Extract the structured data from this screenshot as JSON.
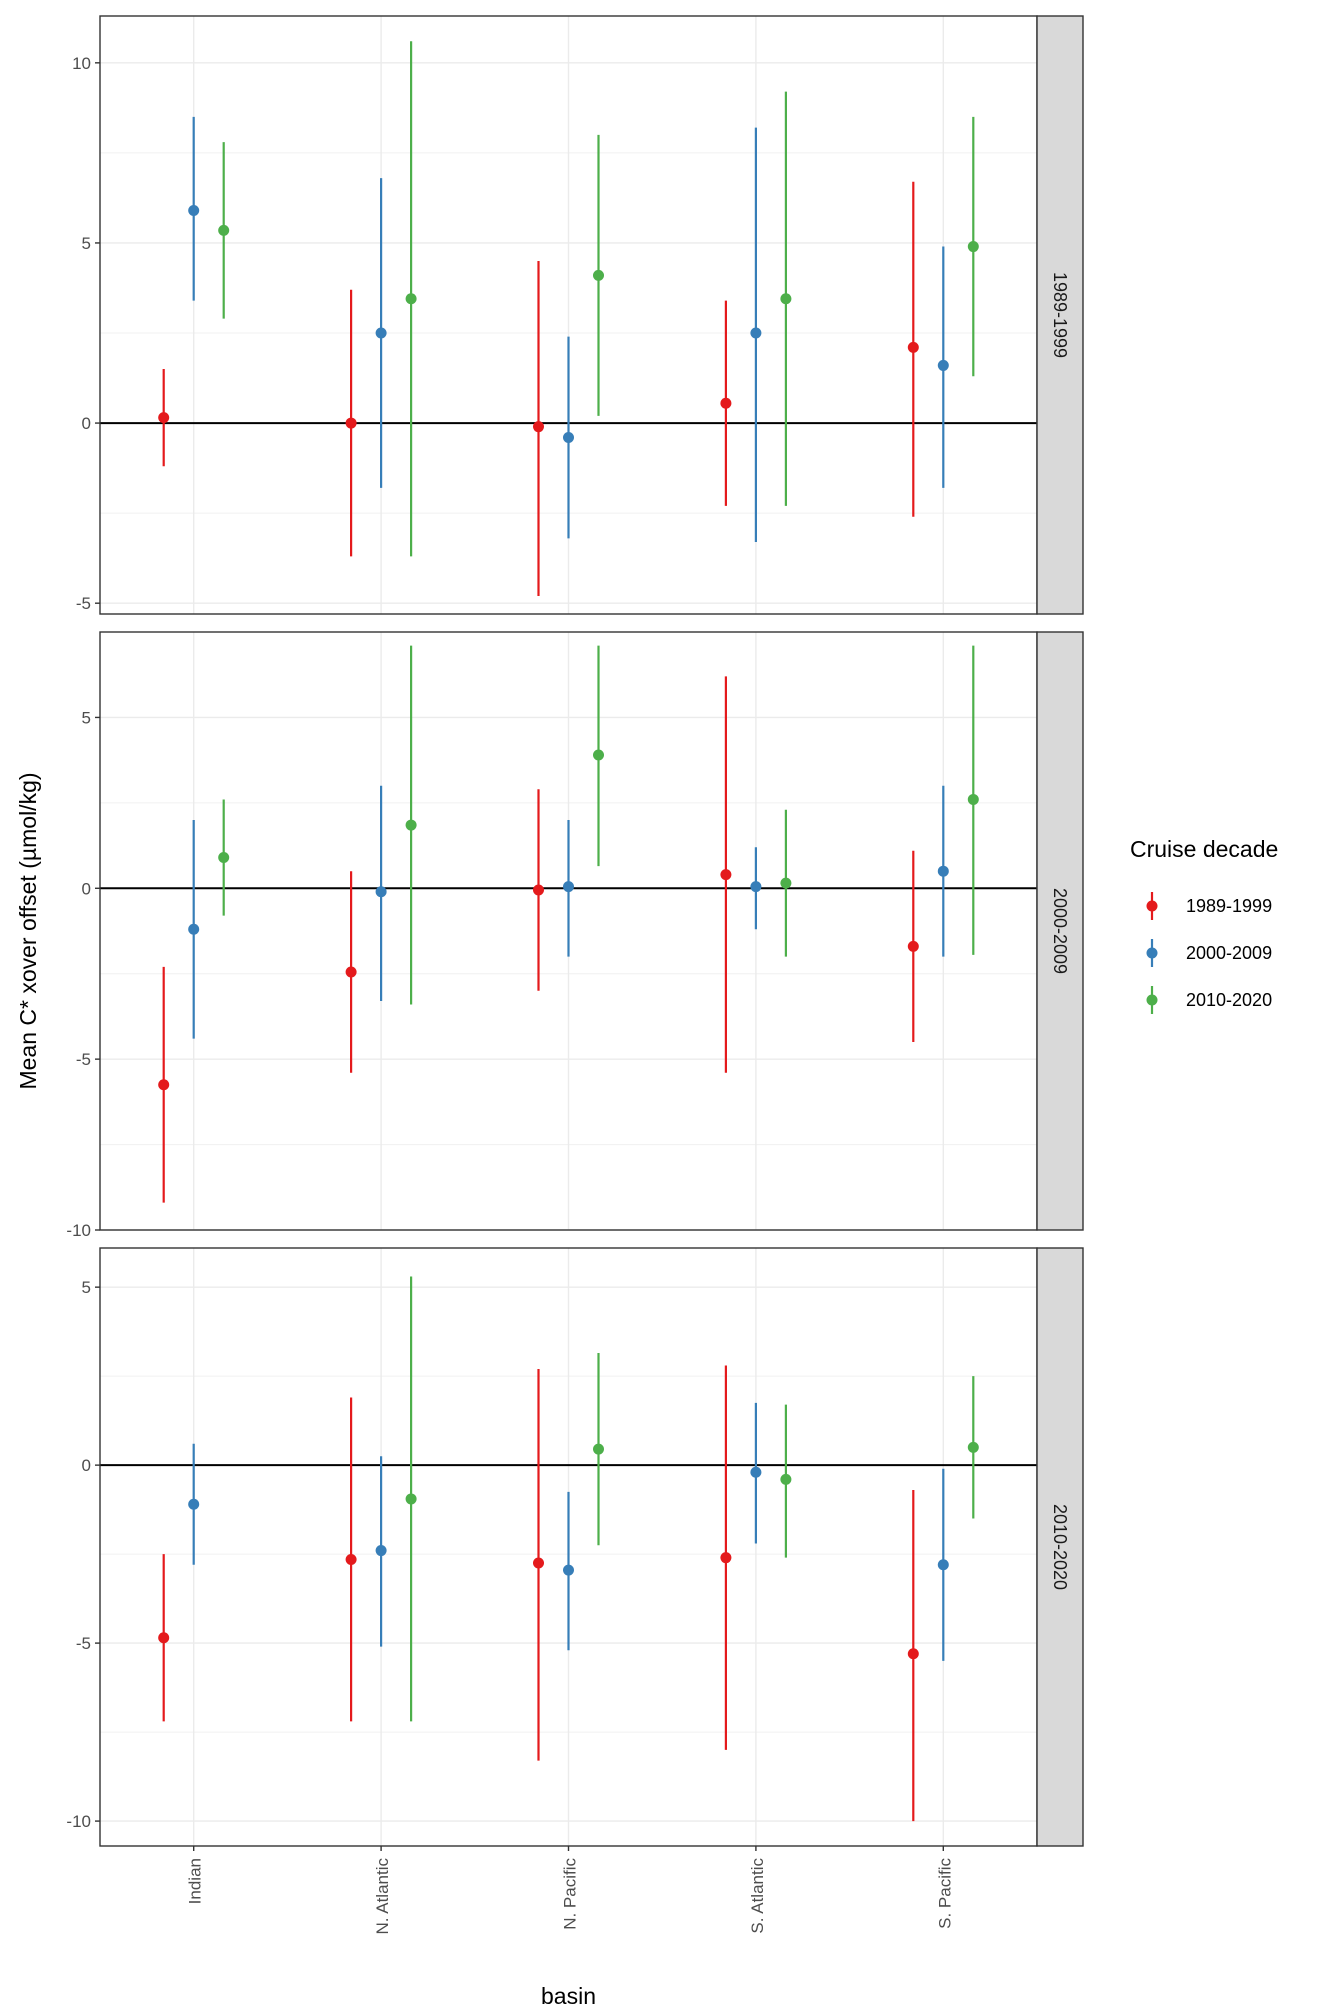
{
  "chart_data": {
    "type": "pointrange",
    "xlabel": "basin",
    "ylabel": "Mean C* xover offset (µmol/kg)",
    "categories": [
      "Indian",
      "N. Atlantic",
      "N. Pacific",
      "S. Atlantic",
      "S. Pacific"
    ],
    "legend": {
      "title": "Cruise decade",
      "position": "right",
      "entries": [
        {
          "name": "1989-1999",
          "color": "#e41a1c"
        },
        {
          "name": "2000-2009",
          "color": "#377eb8"
        },
        {
          "name": "2010-2020",
          "color": "#4daf4a"
        }
      ]
    },
    "facets": [
      {
        "label": "1989-1999",
        "ylim": [
          -5.3,
          11.3
        ],
        "ticks": [
          -5,
          0,
          5,
          10
        ],
        "tick_labels": [
          "-5",
          "0",
          "5",
          "10"
        ],
        "series": [
          {
            "name": "1989-1999",
            "points": [
              {
                "basin": "Indian",
                "mean": 0.15,
                "low": -1.2,
                "high": 1.5
              },
              {
                "basin": "N. Atlantic",
                "mean": 0.0,
                "low": -3.7,
                "high": 3.7
              },
              {
                "basin": "N. Pacific",
                "mean": -0.1,
                "low": -4.8,
                "high": 4.5
              },
              {
                "basin": "S. Atlantic",
                "mean": 0.55,
                "low": -2.3,
                "high": 3.4
              },
              {
                "basin": "S. Pacific",
                "mean": 2.1,
                "low": -2.6,
                "high": 6.7
              }
            ]
          },
          {
            "name": "2000-2009",
            "points": [
              {
                "basin": "Indian",
                "mean": 5.9,
                "low": 3.4,
                "high": 8.5
              },
              {
                "basin": "N. Atlantic",
                "mean": 2.5,
                "low": -1.8,
                "high": 6.8
              },
              {
                "basin": "N. Pacific",
                "mean": -0.4,
                "low": -3.2,
                "high": 2.4
              },
              {
                "basin": "S. Atlantic",
                "mean": 2.5,
                "low": -3.3,
                "high": 8.2
              },
              {
                "basin": "S. Pacific",
                "mean": 1.6,
                "low": -1.8,
                "high": 4.9
              }
            ]
          },
          {
            "name": "2010-2020",
            "points": [
              {
                "basin": "Indian",
                "mean": 5.35,
                "low": 2.9,
                "high": 7.8
              },
              {
                "basin": "N. Atlantic",
                "mean": 3.45,
                "low": -3.7,
                "high": 10.6
              },
              {
                "basin": "N. Pacific",
                "mean": 4.1,
                "low": 0.2,
                "high": 8.0
              },
              {
                "basin": "S. Atlantic",
                "mean": 3.45,
                "low": -2.3,
                "high": 9.2
              },
              {
                "basin": "S. Pacific",
                "mean": 4.9,
                "low": 1.3,
                "high": 8.5
              }
            ]
          }
        ]
      },
      {
        "label": "2000-2009",
        "ylim": [
          -10.0,
          7.5
        ],
        "ticks": [
          -10,
          -5,
          0,
          5
        ],
        "tick_labels": [
          "-10",
          "-5",
          "0",
          "5"
        ],
        "series": [
          {
            "name": "1989-1999",
            "points": [
              {
                "basin": "Indian",
                "mean": -5.75,
                "low": -9.2,
                "high": -2.3
              },
              {
                "basin": "N. Atlantic",
                "mean": -2.45,
                "low": -5.4,
                "high": 0.5
              },
              {
                "basin": "N. Pacific",
                "mean": -0.05,
                "low": -3.0,
                "high": 2.9
              },
              {
                "basin": "S. Atlantic",
                "mean": 0.4,
                "low": -5.4,
                "high": 6.2
              },
              {
                "basin": "S. Pacific",
                "mean": -1.7,
                "low": -4.5,
                "high": 1.1
              }
            ]
          },
          {
            "name": "2000-2009",
            "points": [
              {
                "basin": "Indian",
                "mean": -1.2,
                "low": -4.4,
                "high": 2.0
              },
              {
                "basin": "N. Atlantic",
                "mean": -0.1,
                "low": -3.3,
                "high": 3.0
              },
              {
                "basin": "N. Pacific",
                "mean": 0.05,
                "low": -2.0,
                "high": 2.0
              },
              {
                "basin": "S. Atlantic",
                "mean": 0.05,
                "low": -1.2,
                "high": 1.2
              },
              {
                "basin": "S. Pacific",
                "mean": 0.5,
                "low": -2.0,
                "high": 3.0
              }
            ]
          },
          {
            "name": "2010-2020",
            "points": [
              {
                "basin": "Indian",
                "mean": 0.9,
                "low": -0.8,
                "high": 2.6
              },
              {
                "basin": "N. Atlantic",
                "mean": 1.85,
                "low": -3.4,
                "high": 7.1
              },
              {
                "basin": "N. Pacific",
                "mean": 3.9,
                "low": 0.65,
                "high": 7.1
              },
              {
                "basin": "S. Atlantic",
                "mean": 0.15,
                "low": -2.0,
                "high": 2.3
              },
              {
                "basin": "S. Pacific",
                "mean": 2.6,
                "low": -1.95,
                "high": 7.1
              }
            ]
          }
        ]
      },
      {
        "label": "2010-2020",
        "ylim": [
          -10.7,
          6.1
        ],
        "ticks": [
          -10,
          -5,
          0,
          5
        ],
        "tick_labels": [
          "-10",
          "-5",
          "0",
          "5"
        ],
        "series": [
          {
            "name": "1989-1999",
            "points": [
              {
                "basin": "Indian",
                "mean": -4.85,
                "low": -7.2,
                "high": -2.5
              },
              {
                "basin": "N. Atlantic",
                "mean": -2.65,
                "low": -7.2,
                "high": 1.9
              },
              {
                "basin": "N. Pacific",
                "mean": -2.75,
                "low": -8.3,
                "high": 2.7
              },
              {
                "basin": "S. Atlantic",
                "mean": -2.6,
                "low": -8.0,
                "high": 2.8
              },
              {
                "basin": "S. Pacific",
                "mean": -5.3,
                "low": -10.0,
                "high": -0.7
              }
            ]
          },
          {
            "name": "2000-2009",
            "points": [
              {
                "basin": "Indian",
                "mean": -1.1,
                "low": -2.8,
                "high": 0.6
              },
              {
                "basin": "N. Atlantic",
                "mean": -2.4,
                "low": -5.1,
                "high": 0.25
              },
              {
                "basin": "N. Pacific",
                "mean": -2.95,
                "low": -5.2,
                "high": -0.75
              },
              {
                "basin": "S. Atlantic",
                "mean": -0.2,
                "low": -2.2,
                "high": 1.75
              },
              {
                "basin": "S. Pacific",
                "mean": -2.8,
                "low": -5.5,
                "high": -0.1
              }
            ]
          },
          {
            "name": "2010-2020",
            "points": [
              {
                "basin": "Indian",
                "mean": null,
                "low": null,
                "high": null
              },
              {
                "basin": "N. Atlantic",
                "mean": -0.95,
                "low": -7.2,
                "high": 5.3
              },
              {
                "basin": "N. Pacific",
                "mean": 0.45,
                "low": -2.25,
                "high": 3.15
              },
              {
                "basin": "S. Atlantic",
                "mean": -0.4,
                "low": -2.6,
                "high": 1.7
              },
              {
                "basin": "S. Pacific",
                "mean": 0.5,
                "low": -1.5,
                "high": 2.5
              }
            ]
          }
        ]
      }
    ]
  }
}
